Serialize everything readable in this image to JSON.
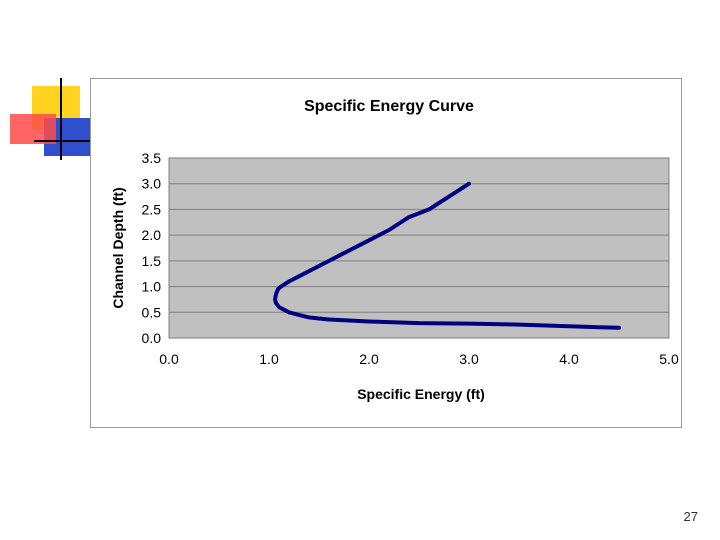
{
  "slide": {
    "number": "27"
  },
  "colors": {
    "plot_bg": "#c0c0c0",
    "line": "#000080",
    "grid": "#7f7f7f"
  },
  "decoration": {
    "icon": "slide-corner-ornament"
  },
  "chart_data": {
    "type": "line",
    "title": "Specific Energy Curve",
    "xlabel": "Specific Energy (ft)",
    "ylabel": "Channel Depth (ft)",
    "xlim": [
      0,
      5
    ],
    "ylim": [
      0,
      3.5
    ],
    "x_ticks": [
      "0.0",
      "1.0",
      "2.0",
      "3.0",
      "4.0",
      "5.0"
    ],
    "y_ticks": [
      "0.0",
      "0.5",
      "1.0",
      "1.5",
      "2.0",
      "2.5",
      "3.0",
      "3.5"
    ],
    "grid": "horizontal",
    "legend": "none",
    "series": [
      {
        "x": [
          4.5,
          4.3,
          4.0,
          3.5,
          3.0,
          2.5,
          2.2,
          2.0,
          1.8,
          1.6,
          1.5,
          1.4,
          1.3,
          1.2,
          1.15,
          1.1,
          1.07,
          1.06,
          1.07,
          1.09,
          1.12,
          1.2,
          1.3,
          1.5,
          1.7,
          2.0,
          2.2,
          2.4,
          2.6,
          2.8,
          3.0
        ],
        "y": [
          0.2,
          0.21,
          0.23,
          0.26,
          0.28,
          0.29,
          0.31,
          0.32,
          0.34,
          0.36,
          0.38,
          0.4,
          0.45,
          0.5,
          0.55,
          0.6,
          0.68,
          0.75,
          0.85,
          0.95,
          1.0,
          1.1,
          1.2,
          1.4,
          1.6,
          1.9,
          2.1,
          2.35,
          2.5,
          2.75,
          3.0
        ]
      }
    ]
  }
}
